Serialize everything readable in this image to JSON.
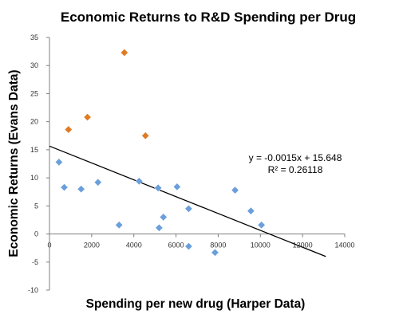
{
  "chart_data": {
    "type": "scatter",
    "title": "Economic Returns to R&D Spending per Drug",
    "xlabel": "Spending per new drug (Harper Data)",
    "ylabel": "Economic Returns (Evans Data)",
    "xlim": [
      0,
      14000
    ],
    "ylim": [
      -10,
      35
    ],
    "x_ticks": [
      "0",
      "2000",
      "4000",
      "6000",
      "8000",
      "10000",
      "12000",
      "14000"
    ],
    "y_ticks": [
      "35",
      "30",
      "25",
      "20",
      "15",
      "10",
      "5",
      "0",
      "-5",
      "-10"
    ],
    "grid": false,
    "legend": "none",
    "series": [
      {
        "color": "#6a9fdc",
        "points": [
          {
            "x": 450,
            "y": 12.8
          },
          {
            "x": 700,
            "y": 8.3
          },
          {
            "x": 1500,
            "y": 8.0
          },
          {
            "x": 2300,
            "y": 9.2
          },
          {
            "x": 3300,
            "y": 1.6
          },
          {
            "x": 4250,
            "y": 9.4
          },
          {
            "x": 5150,
            "y": 8.2
          },
          {
            "x": 6050,
            "y": 8.4
          },
          {
            "x": 5400,
            "y": 3.0
          },
          {
            "x": 5200,
            "y": 1.1
          },
          {
            "x": 6600,
            "y": 4.5
          },
          {
            "x": 6600,
            "y": -2.2
          },
          {
            "x": 7850,
            "y": -3.3
          },
          {
            "x": 8800,
            "y": 7.8
          },
          {
            "x": 9550,
            "y": 4.1
          },
          {
            "x": 10050,
            "y": 1.6
          }
        ]
      },
      {
        "color": "#e07b24",
        "points": [
          {
            "x": 900,
            "y": 18.6
          },
          {
            "x": 1800,
            "y": 20.8
          },
          {
            "x": 3550,
            "y": 32.3
          },
          {
            "x": 4550,
            "y": 17.5
          }
        ]
      }
    ],
    "trendline": {
      "slope": -0.0015,
      "intercept": 15.648,
      "x_range": [
        0,
        13100
      ],
      "color": "#000000",
      "equation": "y = -0.0015x + 15.648",
      "r_squared": "R² = 0.26118"
    }
  }
}
